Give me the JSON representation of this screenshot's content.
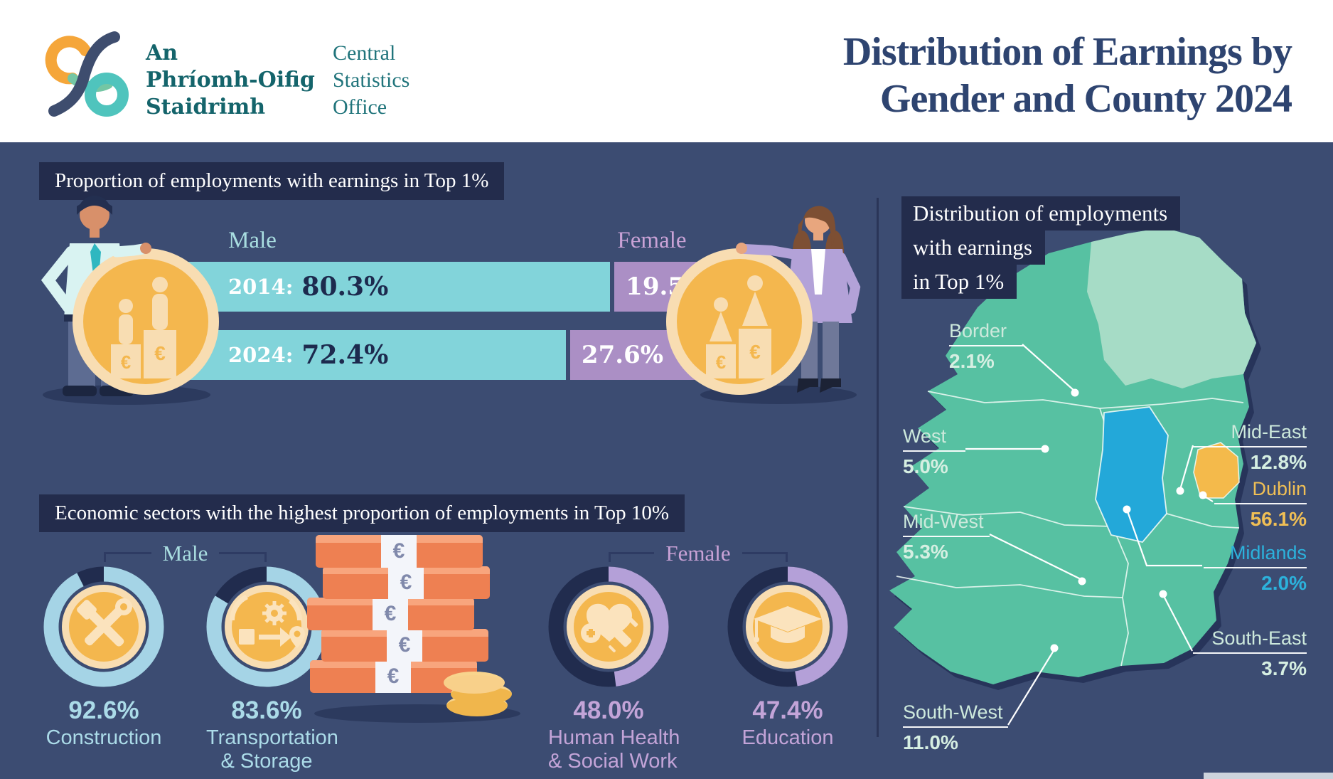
{
  "header": {
    "logo_irish_lines": [
      "An",
      "Phríomh-Oifig",
      "Staidrimh"
    ],
    "logo_english_lines": [
      "Central",
      "Statistics",
      "Office"
    ],
    "title_lines": [
      "Distribution of Earnings by",
      "Gender and County 2024"
    ]
  },
  "top1_section": {
    "heading": "Proportion of employments with earnings in Top 1%",
    "male_label": "Male",
    "female_label": "Female",
    "rows": [
      {
        "year_label": "2014:",
        "male_pct": "80.3%",
        "female_pct": "19.5%",
        "male_value": 80.3,
        "female_value": 19.5
      },
      {
        "year_label": "2024:",
        "male_pct": "72.4%",
        "female_pct": "27.6%",
        "male_value": 72.4,
        "female_value": 27.6
      }
    ]
  },
  "sectors_section": {
    "heading": "Economic sectors with the highest proportion of employments in Top 10%",
    "male_label": "Male",
    "female_label": "Female",
    "donuts": [
      {
        "gender": "male",
        "pct_label": "92.6%",
        "value": 92.6,
        "name_lines": [
          "Construction",
          ""
        ],
        "icon": "construction-tools-icon"
      },
      {
        "gender": "male",
        "pct_label": "83.6%",
        "value": 83.6,
        "name_lines": [
          "Transportation",
          "& Storage"
        ],
        "icon": "logistics-icon"
      },
      {
        "gender": "female",
        "pct_label": "48.0%",
        "value": 48.0,
        "name_lines": [
          "Human Health",
          "& Social Work"
        ],
        "icon": "health-icon"
      },
      {
        "gender": "female",
        "pct_label": "47.4%",
        "value": 47.4,
        "name_lines": [
          "Education",
          ""
        ],
        "icon": "graduation-cap-icon"
      }
    ]
  },
  "map_section": {
    "heading_lines": [
      "Distribution of employments",
      "with earnings",
      "in Top 1%"
    ],
    "regions": [
      {
        "name": "Border",
        "pct": "2.1%"
      },
      {
        "name": "West",
        "pct": "5.0%"
      },
      {
        "name": "Mid-West",
        "pct": "5.3%"
      },
      {
        "name": "South-West",
        "pct": "11.0%"
      },
      {
        "name": "Mid-East",
        "pct": "12.8%"
      },
      {
        "name": "Dublin",
        "pct": "56.1%"
      },
      {
        "name": "Midlands",
        "pct": "2.0%"
      },
      {
        "name": "South-East",
        "pct": "3.7%"
      }
    ]
  },
  "icons": {
    "euro": "€"
  },
  "colors": {
    "background_navy": "#3c4c72",
    "heading_box_navy": "#232c4c",
    "male_teal": "#82d4da",
    "female_purple": "#ab8fc5",
    "male_ring_blue": "#a5d4e6",
    "female_ring_purple": "#b4a0d8",
    "coin_gold": "#f4b74e",
    "coin_cream": "#f8ddb2",
    "map_green": "#57c1a2",
    "map_ni_green": "#a6dcc6",
    "map_midlands_cyan": "#23a8d9",
    "map_dublin_gold": "#f4ba4b",
    "title_navy": "#2e4470",
    "logo_teal": "#14646b"
  },
  "chart_data": [
    {
      "type": "bar",
      "layout": "stacked-horizontal",
      "title": "Proportion of employments with earnings in Top 1%",
      "categories": [
        "2014",
        "2024"
      ],
      "series": [
        {
          "name": "Male",
          "values": [
            80.3,
            72.4
          ]
        },
        {
          "name": "Female",
          "values": [
            19.5,
            27.6
          ]
        }
      ],
      "unit": "%"
    },
    {
      "type": "pie",
      "layout": "four-donut-gauges",
      "title": "Economic sectors with the highest proportion of employments in Top 10%",
      "series": [
        {
          "name": "Construction (Male)",
          "value": 92.6
        },
        {
          "name": "Transportation & Storage (Male)",
          "value": 83.6
        },
        {
          "name": "Human Health & Social Work (Female)",
          "value": 48.0
        },
        {
          "name": "Education (Female)",
          "value": 47.4
        }
      ],
      "unit": "%"
    },
    {
      "type": "heatmap",
      "layout": "choropleth-map-ireland",
      "title": "Distribution of employments with earnings in Top 1%",
      "categories": [
        "Border",
        "West",
        "Mid-West",
        "South-West",
        "Mid-East",
        "Dublin",
        "Midlands",
        "South-East"
      ],
      "values": [
        2.1,
        5.0,
        5.3,
        11.0,
        12.8,
        56.1,
        2.0,
        3.7
      ],
      "unit": "%"
    }
  ]
}
